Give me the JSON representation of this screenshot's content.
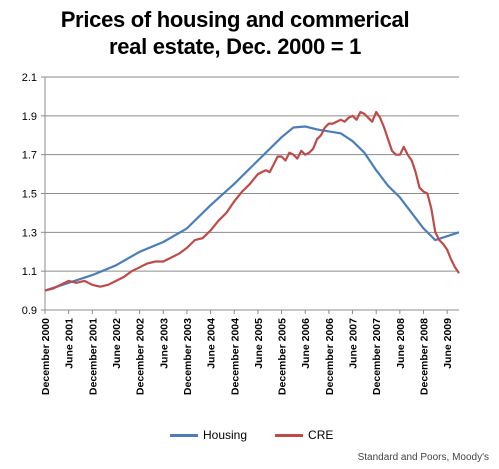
{
  "chart_data": {
    "type": "line",
    "title_lines": [
      "Prices of housing and commerical",
      "real estate, Dec. 2000 = 1"
    ],
    "ylim": [
      0.9,
      2.1
    ],
    "y_ticks": [
      "0.9",
      "1.1",
      "1.3",
      "1.5",
      "1.7",
      "1.9",
      "2.1"
    ],
    "y_tick_values": [
      0.9,
      1.1,
      1.3,
      1.5,
      1.7,
      1.9,
      2.1
    ],
    "x_ticks": [
      "December 2000",
      "June 2001",
      "December 2001",
      "June 2002",
      "December 2002",
      "June 2003",
      "December 2003",
      "June 2004",
      "December 2004",
      "June 2005",
      "December 2005",
      "June 2006",
      "December 2006",
      "June 2007",
      "December 2007",
      "June 2008",
      "December 2008",
      "June 2009"
    ],
    "x_tick_values": [
      2000.917,
      2001.417,
      2001.917,
      2002.417,
      2002.917,
      2003.417,
      2003.917,
      2004.417,
      2004.917,
      2005.417,
      2005.917,
      2006.417,
      2006.917,
      2007.417,
      2007.917,
      2008.417,
      2008.917,
      2009.417
    ],
    "xlim": [
      2000.917,
      2009.667
    ],
    "grid": true,
    "legend_position": "bottom",
    "series": [
      {
        "name": "Housing",
        "color": "#4a7ebb",
        "points": [
          [
            2000.917,
            1.0
          ],
          [
            2001.417,
            1.04
          ],
          [
            2001.917,
            1.08
          ],
          [
            2002.417,
            1.13
          ],
          [
            2002.917,
            1.2
          ],
          [
            2003.417,
            1.25
          ],
          [
            2003.917,
            1.32
          ],
          [
            2004.417,
            1.44
          ],
          [
            2004.917,
            1.55
          ],
          [
            2005.417,
            1.67
          ],
          [
            2005.917,
            1.79
          ],
          [
            2006.167,
            1.84
          ],
          [
            2006.417,
            1.845
          ],
          [
            2006.667,
            1.83
          ],
          [
            2006.917,
            1.82
          ],
          [
            2007.167,
            1.81
          ],
          [
            2007.417,
            1.77
          ],
          [
            2007.667,
            1.71
          ],
          [
            2007.917,
            1.62
          ],
          [
            2008.167,
            1.54
          ],
          [
            2008.417,
            1.48
          ],
          [
            2008.667,
            1.4
          ],
          [
            2008.917,
            1.32
          ],
          [
            2009.167,
            1.26
          ],
          [
            2009.417,
            1.28
          ],
          [
            2009.667,
            1.3
          ]
        ]
      },
      {
        "name": "CRE",
        "color": "#be4b48",
        "points": [
          [
            2000.917,
            1.0
          ],
          [
            2001.083,
            1.01
          ],
          [
            2001.25,
            1.03
          ],
          [
            2001.417,
            1.05
          ],
          [
            2001.583,
            1.04
          ],
          [
            2001.75,
            1.05
          ],
          [
            2001.917,
            1.03
          ],
          [
            2002.083,
            1.02
          ],
          [
            2002.25,
            1.03
          ],
          [
            2002.417,
            1.05
          ],
          [
            2002.583,
            1.07
          ],
          [
            2002.75,
            1.1
          ],
          [
            2002.917,
            1.12
          ],
          [
            2003.083,
            1.14
          ],
          [
            2003.25,
            1.15
          ],
          [
            2003.417,
            1.15
          ],
          [
            2003.583,
            1.17
          ],
          [
            2003.75,
            1.19
          ],
          [
            2003.917,
            1.22
          ],
          [
            2004.083,
            1.26
          ],
          [
            2004.25,
            1.27
          ],
          [
            2004.417,
            1.31
          ],
          [
            2004.583,
            1.36
          ],
          [
            2004.75,
            1.4
          ],
          [
            2004.917,
            1.46
          ],
          [
            2005.083,
            1.51
          ],
          [
            2005.25,
            1.55
          ],
          [
            2005.417,
            1.6
          ],
          [
            2005.5,
            1.61
          ],
          [
            2005.583,
            1.62
          ],
          [
            2005.667,
            1.61
          ],
          [
            2005.75,
            1.65
          ],
          [
            2005.833,
            1.69
          ],
          [
            2005.917,
            1.69
          ],
          [
            2006.0,
            1.67
          ],
          [
            2006.083,
            1.71
          ],
          [
            2006.167,
            1.7
          ],
          [
            2006.25,
            1.68
          ],
          [
            2006.333,
            1.72
          ],
          [
            2006.417,
            1.7
          ],
          [
            2006.5,
            1.71
          ],
          [
            2006.583,
            1.73
          ],
          [
            2006.667,
            1.78
          ],
          [
            2006.75,
            1.8
          ],
          [
            2006.833,
            1.84
          ],
          [
            2006.917,
            1.86
          ],
          [
            2007.0,
            1.86
          ],
          [
            2007.083,
            1.87
          ],
          [
            2007.167,
            1.88
          ],
          [
            2007.25,
            1.87
          ],
          [
            2007.333,
            1.89
          ],
          [
            2007.417,
            1.9
          ],
          [
            2007.5,
            1.88
          ],
          [
            2007.583,
            1.92
          ],
          [
            2007.667,
            1.91
          ],
          [
            2007.75,
            1.89
          ],
          [
            2007.833,
            1.87
          ],
          [
            2007.917,
            1.92
          ],
          [
            2008.0,
            1.89
          ],
          [
            2008.083,
            1.84
          ],
          [
            2008.167,
            1.78
          ],
          [
            2008.25,
            1.72
          ],
          [
            2008.333,
            1.7
          ],
          [
            2008.417,
            1.7
          ],
          [
            2008.5,
            1.74
          ],
          [
            2008.583,
            1.7
          ],
          [
            2008.667,
            1.67
          ],
          [
            2008.75,
            1.61
          ],
          [
            2008.833,
            1.53
          ],
          [
            2008.917,
            1.51
          ],
          [
            2009.0,
            1.5
          ],
          [
            2009.083,
            1.42
          ],
          [
            2009.167,
            1.3
          ],
          [
            2009.25,
            1.26
          ],
          [
            2009.333,
            1.24
          ],
          [
            2009.417,
            1.21
          ],
          [
            2009.5,
            1.16
          ],
          [
            2009.583,
            1.12
          ],
          [
            2009.667,
            1.09
          ]
        ]
      }
    ]
  },
  "legend": {
    "items": [
      {
        "label": "Housing",
        "color": "#4a7ebb"
      },
      {
        "label": "CRE",
        "color": "#be4b48"
      }
    ]
  },
  "source": "Standard and Poors, Moody's"
}
